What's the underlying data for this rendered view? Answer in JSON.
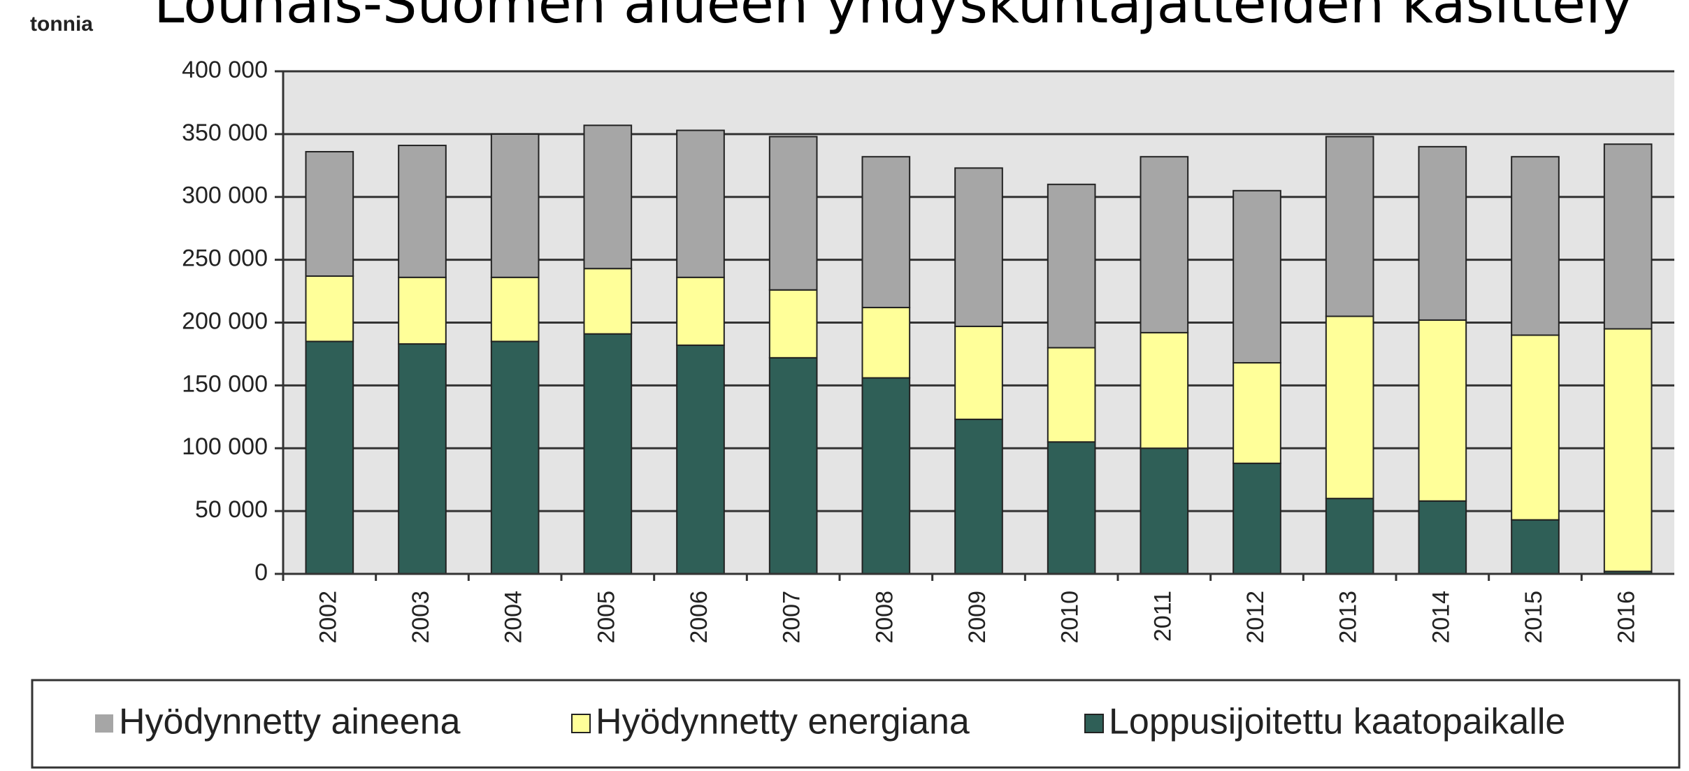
{
  "chart_data": {
    "type": "stacked_bar",
    "title": "Lounais-Suomen alueen yhdyskuntajätteiden käsittely",
    "y_label": "tonnia",
    "categories": [
      "2002",
      "2003",
      "2004",
      "2005",
      "2006",
      "2007",
      "2008",
      "2009",
      "2010",
      "2011",
      "2012",
      "2013",
      "2014",
      "2015",
      "2016"
    ],
    "series": [
      {
        "name": "Hyödynnetty aineena",
        "color": "#a6a6a6",
        "values": [
          99000,
          105000,
          114000,
          114000,
          117000,
          122000,
          120000,
          126000,
          130000,
          140000,
          137000,
          143000,
          138000,
          142000,
          147000
        ]
      },
      {
        "name": "Hyödynnetty energiana",
        "color": "#ffff99",
        "values": [
          52000,
          53000,
          51000,
          52000,
          54000,
          54000,
          56000,
          74000,
          75000,
          92000,
          80000,
          145000,
          144000,
          147000,
          193000
        ]
      },
      {
        "name": "Loppusijoitettu kaatopaikalle",
        "color": "#2f5f57",
        "values": [
          185000,
          183000,
          185000,
          191000,
          182000,
          172000,
          156000,
          123000,
          105000,
          100000,
          88000,
          60000,
          58000,
          43000,
          2000
        ]
      }
    ],
    "ylim": [
      0,
      400000
    ],
    "yticks": [
      0,
      {
        "value": 50000,
        "label": "50 000"
      },
      {
        "value": 100000,
        "label": "100 000"
      },
      {
        "value": 150000,
        "label": "150 000"
      },
      {
        "value": 200000,
        "label": "200 000"
      },
      {
        "value": 250000,
        "label": "250 000"
      },
      {
        "value": 300000,
        "label": "300 000"
      },
      {
        "value": 350000,
        "label": "350 000"
      },
      {
        "value": 400000,
        "label": "400 000"
      }
    ],
    "grid": true,
    "legend": "bottom"
  }
}
